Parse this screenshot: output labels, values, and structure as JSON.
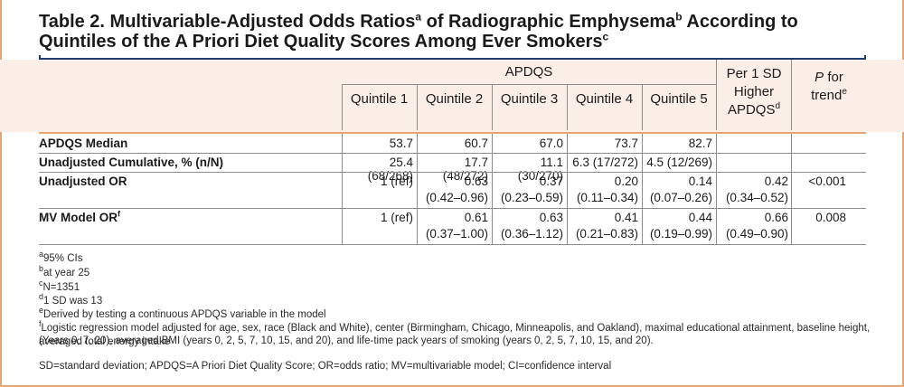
{
  "title": {
    "part1": "Table 2. Multivariable-Adjusted Odds Ratios",
    "sup_a": "a",
    "part2": " of Radiographic Emphysema",
    "sup_b": "b",
    "part3": " According to",
    "part4": "Quintiles of the A Priori Diet Quality Scores Among Ever Smokers",
    "sup_c": "c"
  },
  "header": {
    "group": "APDQS",
    "quintiles": [
      "Quintile 1",
      "Quintile 2",
      "Quintile 3",
      "Quintile 4",
      "Quintile 5"
    ],
    "per_sd_line1": "Per 1 SD",
    "per_sd_line2": "Higher",
    "per_sd_line3": "APDQS",
    "per_sd_sup": "d",
    "trend_p": "P",
    "trend_for": " for",
    "trend_line2": "trend",
    "trend_sup": "e"
  },
  "rows": [
    {
      "label": "APDQS Median",
      "values": [
        "53.7",
        "60.7",
        "67.0",
        "73.7",
        "82.7"
      ],
      "ci": [
        "",
        "",
        "",
        "",
        ""
      ],
      "per_sd": "",
      "per_sd_ci": "",
      "trend": ""
    },
    {
      "label": "Unadjusted Cumulative, % (n/N)",
      "values": [
        "25.4 (68/268)",
        "17.7 (48/272)",
        "11.1 (30/270)",
        "6.3 (17/272)",
        "4.5 (12/269)"
      ],
      "ci": [
        "",
        "",
        "",
        "",
        ""
      ],
      "per_sd": "",
      "per_sd_ci": "",
      "trend": ""
    },
    {
      "label": "Unadjusted OR",
      "values": [
        "1 (ref)",
        "0.63",
        "0.37",
        "0.20",
        "0.14"
      ],
      "ci": [
        "",
        "(0.42–0.96)",
        "(0.23–0.59)",
        "(0.11–0.34)",
        "(0.07–0.26)"
      ],
      "per_sd": "0.42",
      "per_sd_ci": "(0.34–0.52)",
      "trend": "<0.001"
    },
    {
      "label": "MV Model OR",
      "label_sup": "f",
      "values": [
        "1 (ref)",
        "0.61",
        "0.63",
        "0.41",
        "0.44"
      ],
      "ci": [
        "",
        "(0.37–1.00)",
        "(0.36–1.12)",
        "(0.21–0.83)",
        "(0.19–0.99)"
      ],
      "per_sd": "0.66",
      "per_sd_ci": "(0.49–0.90)",
      "trend": "0.008"
    }
  ],
  "footnotes": [
    {
      "mark": "a",
      "text": "95% CIs"
    },
    {
      "mark": "b",
      "text": "at year 25"
    },
    {
      "mark": "c",
      "text": "N=1351"
    },
    {
      "mark": "d",
      "text": "1 SD was 13"
    },
    {
      "mark": "e",
      "text": "Derived by testing a continuous APDQS variable in the model"
    },
    {
      "mark": "f",
      "text": "Logistic regression model adjusted for age, sex, race (Black and White), center (Birmingham, Chicago, Minneapolis, and Oakland), maximal educational attainment, baseline height, averaged total energy intake"
    },
    {
      "mark": "",
      "text": "(Years 0, 7, 20), averaged BMI (years 0, 2, 5, 7, 10, 15, and 20), and life-time pack years of smoking (years 0, 2, 5, 7, 10, 15, and 20)."
    }
  ],
  "abbreviations": "SD=standard deviation; APDQS=A Priori Diet Quality Score; OR=odds ratio; MV=multivariable model; CI=confidence interval",
  "colors": {
    "accent_orange": "#e8a572",
    "navy_rule": "#1f3c6b",
    "header_band": "#fbeee6"
  }
}
